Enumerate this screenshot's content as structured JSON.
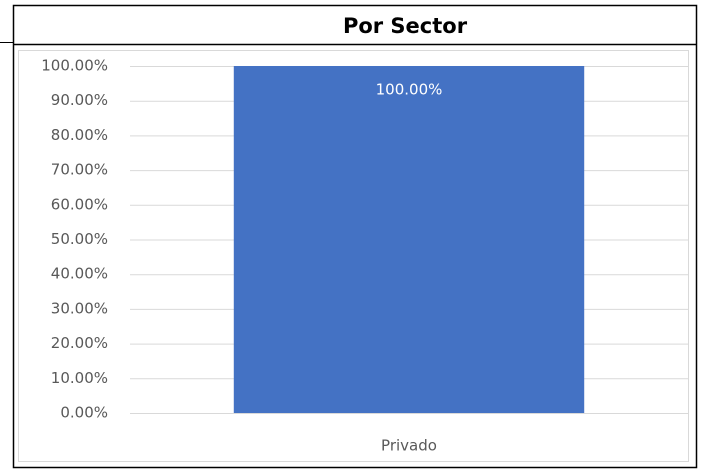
{
  "chart_data": {
    "type": "bar",
    "title": "Por Sector",
    "categories": [
      "Privado"
    ],
    "values": [
      100
    ],
    "value_labels": [
      "100.00%"
    ],
    "color": "#4472c4",
    "ylim": [
      0,
      100
    ],
    "yticks": [
      {
        "value": 0,
        "label": "0.00%"
      },
      {
        "value": 10,
        "label": "10.00%"
      },
      {
        "value": 20,
        "label": "20.00%"
      },
      {
        "value": 30,
        "label": "30.00%"
      },
      {
        "value": 40,
        "label": "40.00%"
      },
      {
        "value": 50,
        "label": "50.00%"
      },
      {
        "value": 60,
        "label": "60.00%"
      },
      {
        "value": 70,
        "label": "70.00%"
      },
      {
        "value": 80,
        "label": "80.00%"
      },
      {
        "value": 90,
        "label": "90.00%"
      },
      {
        "value": 100,
        "label": "100.00%"
      }
    ],
    "grid": true
  }
}
